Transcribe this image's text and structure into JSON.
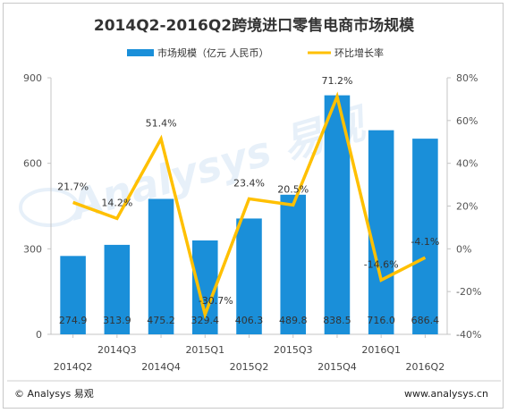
{
  "chart_data": {
    "type": "bar",
    "title": "2014Q2-2016Q2跨境进口零售电商市场规模",
    "categories": [
      "2014Q2",
      "2014Q3",
      "2014Q4",
      "2015Q1",
      "2015Q2",
      "2015Q3",
      "2015Q4",
      "2016Q1",
      "2016Q2"
    ],
    "series": [
      {
        "name": "市场规模（亿元 人民币）",
        "type": "bar",
        "axis": "left",
        "color": "#1a8fd9",
        "values": [
          274.9,
          313.9,
          475.2,
          329.4,
          406.3,
          489.8,
          838.5,
          716.0,
          686.4
        ],
        "labels": [
          "274.9",
          "313.9",
          "475.2",
          "329.4",
          "406.3",
          "489.8",
          "838.5",
          "716.0",
          "686.4"
        ]
      },
      {
        "name": "环比增长率",
        "type": "line",
        "axis": "right",
        "color": "#ffc000",
        "values": [
          21.7,
          14.2,
          51.4,
          -30.7,
          23.4,
          20.5,
          71.2,
          -14.6,
          -4.1
        ],
        "labels": [
          "21.7%",
          "14.2%",
          "51.4%",
          "-30.7%",
          "23.4%",
          "20.5%",
          "71.2%",
          "-14.6%",
          "-4.1%"
        ]
      }
    ],
    "ylim_left": [
      0,
      900
    ],
    "yticks_left": [
      "0",
      "300",
      "600",
      "900"
    ],
    "ylim_right": [
      -40,
      80
    ],
    "yticks_right": [
      "-40%",
      "-20%",
      "0%",
      "20%",
      "40%",
      "60%",
      "80%"
    ],
    "legend": "top-center",
    "grid": false
  },
  "footer": {
    "copyright": "© Analysys 易观",
    "url": "www.analysys.cn"
  },
  "watermark": "Analysys 易观"
}
